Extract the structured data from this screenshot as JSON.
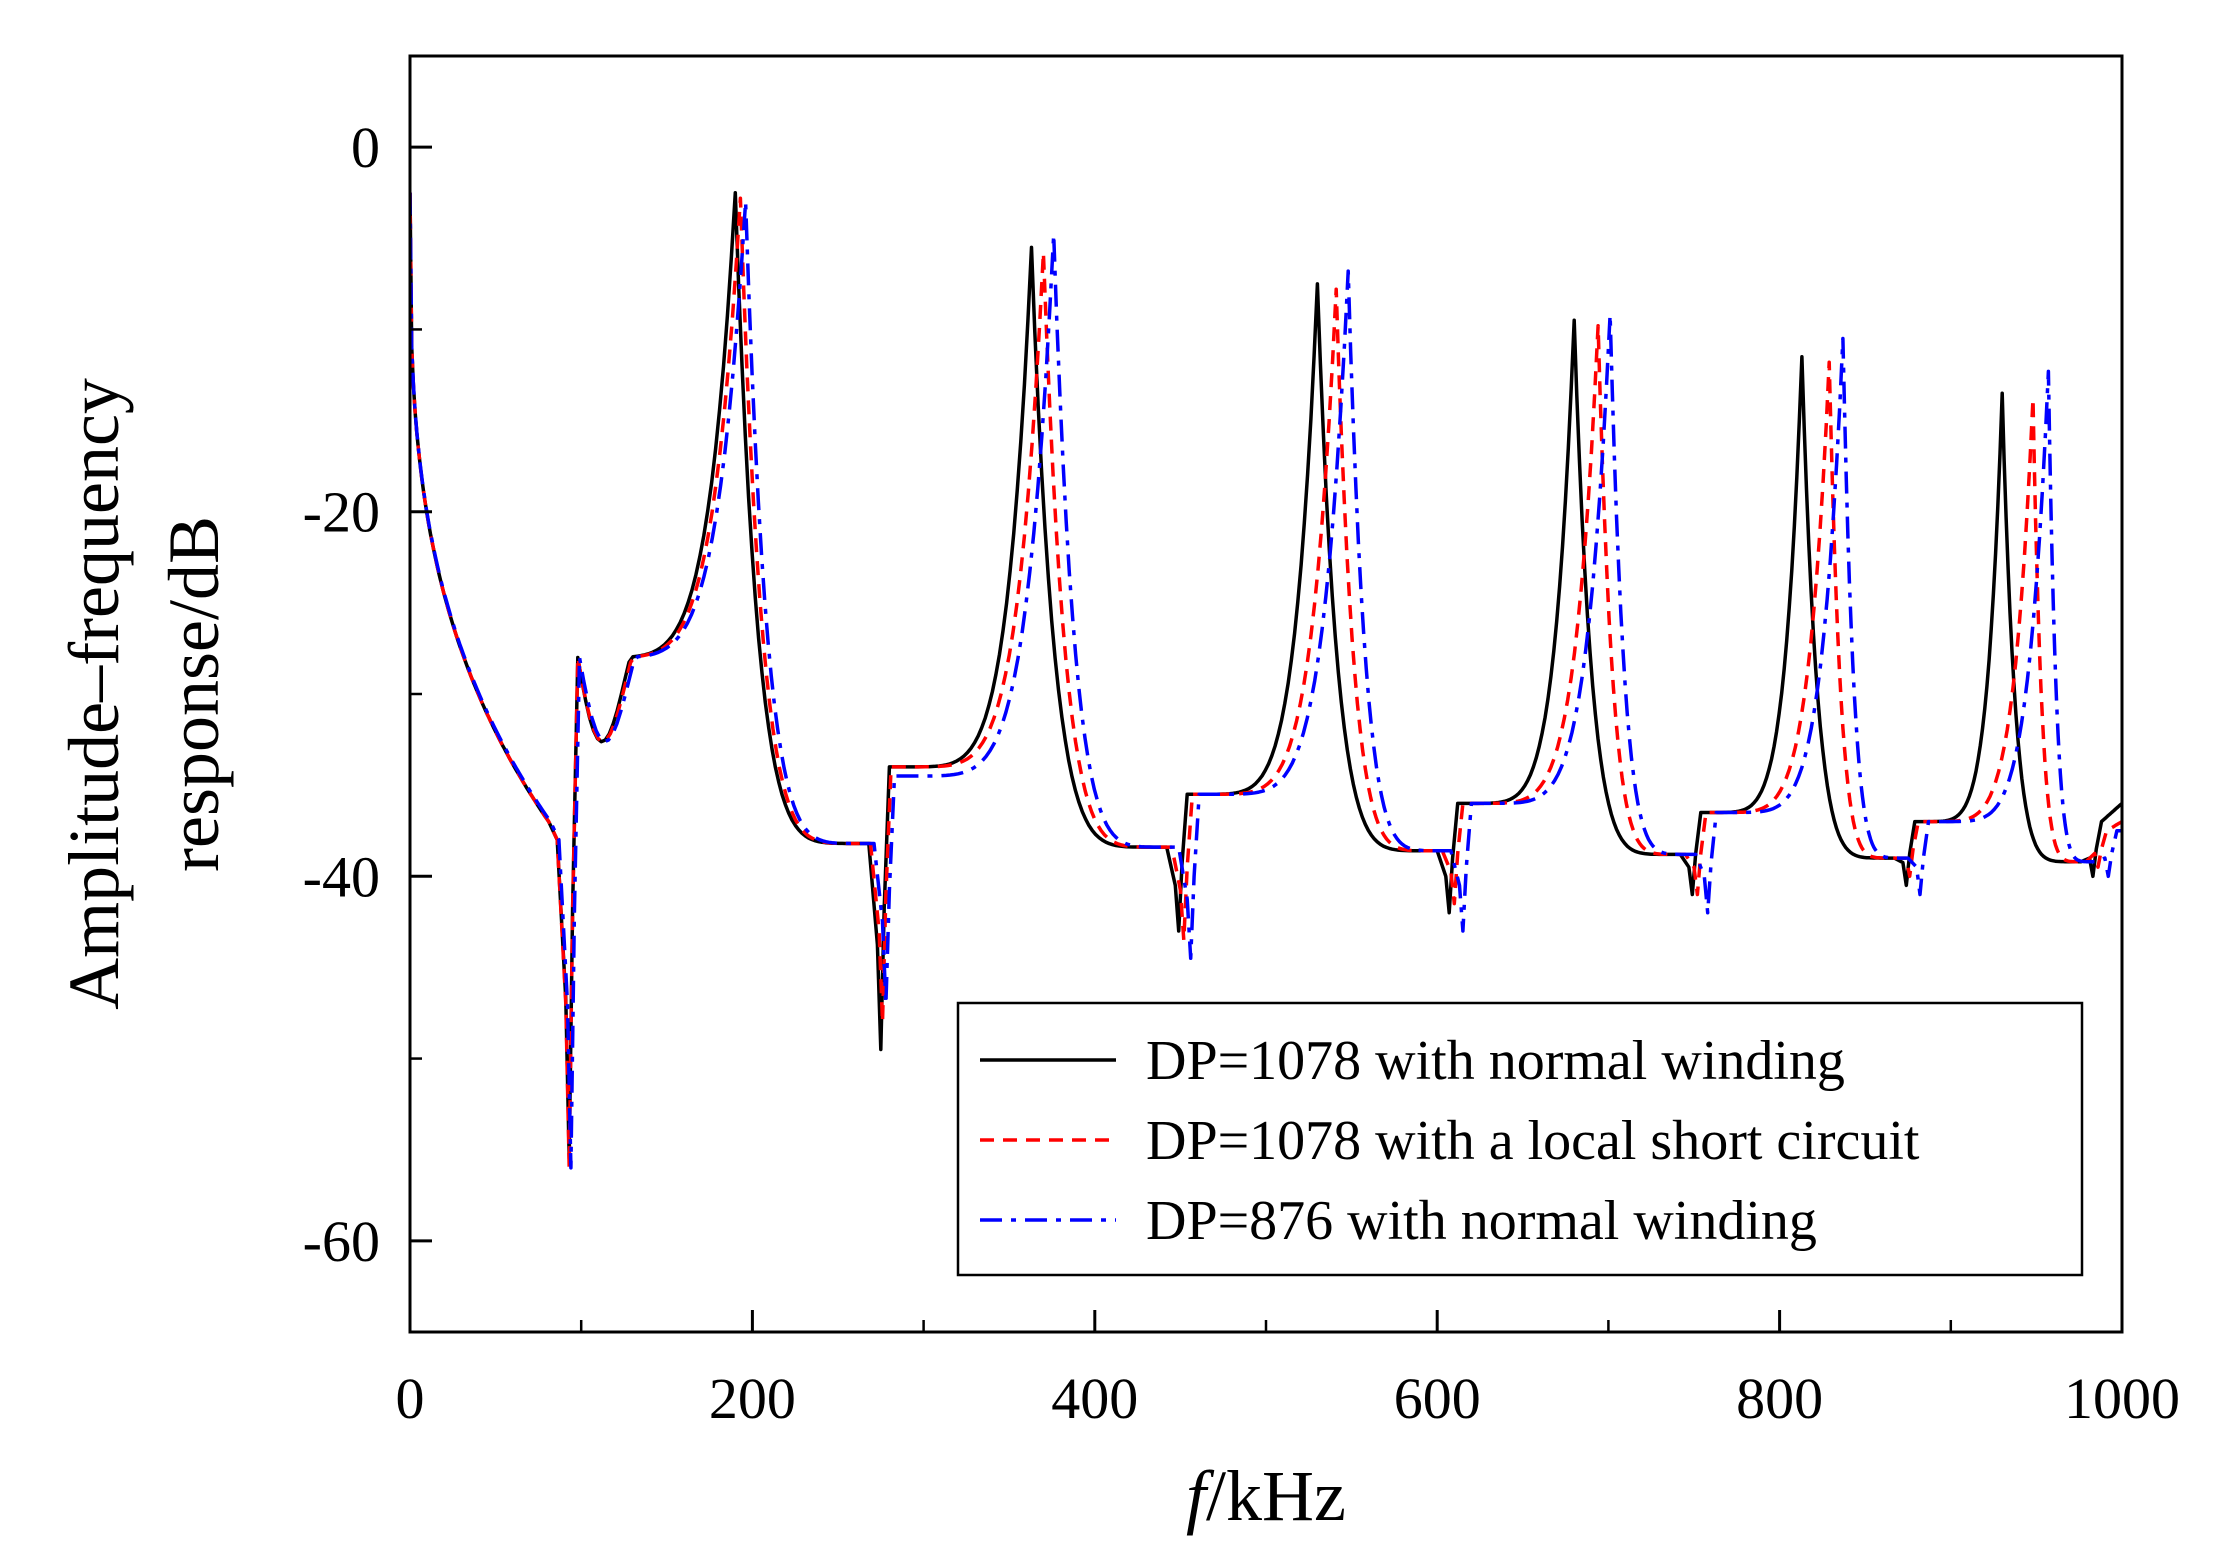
{
  "chart_data": {
    "type": "line",
    "title": "",
    "xlabel_italic": "f",
    "xlabel_rest": "/kHz",
    "ylabel_line1": "Amplitude–frequency",
    "ylabel_line2": "response/dB",
    "xlim": [
      0,
      1000
    ],
    "ylim": [
      -65,
      5
    ],
    "x_ticks": [
      0,
      200,
      400,
      600,
      800,
      1000
    ],
    "y_ticks": [
      0,
      -20,
      -40,
      -60
    ],
    "x_tick_labels": [
      "0",
      "200",
      "400",
      "600",
      "800",
      "1000"
    ],
    "y_tick_labels": [
      "0",
      "-20",
      "-40",
      "-60"
    ],
    "grid": false,
    "legend_position": "bottom-right",
    "series": [
      {
        "name": "DP=1078 with normal winding",
        "color": "#000000",
        "style": "solid",
        "start_value": -2.5,
        "antiresonances": [
          {
            "f": 93,
            "min": -55.5,
            "rebound": -28
          },
          {
            "f": 275,
            "min": -49.5,
            "rebound": -34
          },
          {
            "f": 449,
            "min": -43,
            "rebound": -35.5
          },
          {
            "f": 607,
            "min": -42,
            "rebound": -36
          },
          {
            "f": 749,
            "min": -41,
            "rebound": -36.5
          },
          {
            "f": 874,
            "min": -40.5,
            "rebound": -37
          },
          {
            "f": 983,
            "min": -40,
            "rebound": -37
          }
        ],
        "resonances": [
          {
            "f": 190,
            "peak": -2.5
          },
          {
            "f": 363,
            "peak": -5.5
          },
          {
            "f": 530,
            "peak": -7.5
          },
          {
            "f": 680,
            "peak": -9.5
          },
          {
            "f": 813,
            "peak": -11.5
          },
          {
            "f": 930,
            "peak": -13.5
          }
        ],
        "end_value": -36
      },
      {
        "name": "DP=1078 with a local short circuit",
        "color": "#ff0000",
        "style": "dashed",
        "start_value": -2.5,
        "antiresonances": [
          {
            "f": 93,
            "min": -56,
            "rebound": -28
          },
          {
            "f": 276,
            "min": -48,
            "rebound": -34
          },
          {
            "f": 452,
            "min": -43.5,
            "rebound": -35.5
          },
          {
            "f": 610,
            "min": -41.5,
            "rebound": -36
          },
          {
            "f": 752,
            "min": -41,
            "rebound": -36.5
          },
          {
            "f": 876,
            "min": -40,
            "rebound": -37
          },
          {
            "f": 986,
            "min": -39.5,
            "rebound": -37.5
          }
        ],
        "resonances": [
          {
            "f": 193,
            "peak": -2.8
          },
          {
            "f": 370,
            "peak": -5.8
          },
          {
            "f": 541,
            "peak": -7.8
          },
          {
            "f": 694,
            "peak": -9.8
          },
          {
            "f": 829,
            "peak": -11.8
          },
          {
            "f": 948,
            "peak": -13.8
          }
        ],
        "end_value": -37
      },
      {
        "name": "DP=876 with normal winding",
        "color": "#0000ff",
        "style": "dash-dot",
        "start_value": -2.5,
        "antiresonances": [
          {
            "f": 94,
            "min": -56,
            "rebound": -28
          },
          {
            "f": 278,
            "min": -47,
            "rebound": -34.5
          },
          {
            "f": 456,
            "min": -44.5,
            "rebound": -35.5
          },
          {
            "f": 615,
            "min": -43,
            "rebound": -36
          },
          {
            "f": 758,
            "min": -42,
            "rebound": -36.5
          },
          {
            "f": 882,
            "min": -41,
            "rebound": -37
          },
          {
            "f": 992,
            "min": -40,
            "rebound": -37.5
          }
        ],
        "resonances": [
          {
            "f": 196,
            "peak": -3.0
          },
          {
            "f": 376,
            "peak": -4.8
          },
          {
            "f": 548,
            "peak": -6.8
          },
          {
            "f": 701,
            "peak": -9.2
          },
          {
            "f": 837,
            "peak": -10.5
          },
          {
            "f": 957,
            "peak": -12.3
          }
        ],
        "end_value": -37.5
      }
    ]
  }
}
